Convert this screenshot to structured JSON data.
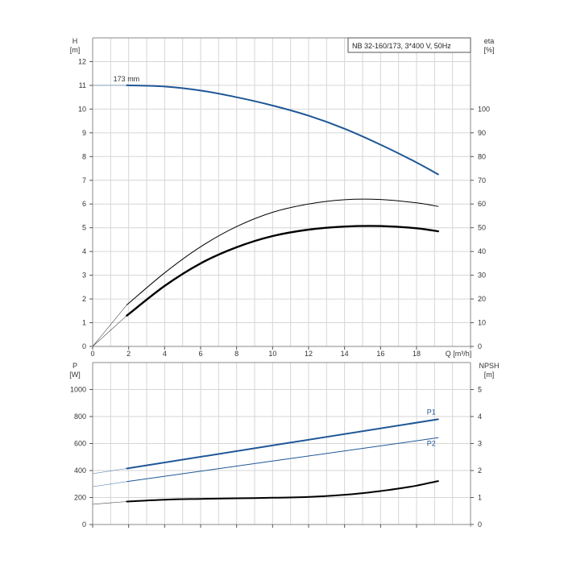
{
  "colors": {
    "blue": "#1f5796",
    "black": "#000000",
    "grid": "#d6d6d6"
  },
  "chart_data": [
    {
      "type": "line",
      "title": "NB 32-160/173, 3*400 V, 50Hz",
      "left_axis": {
        "label_top": "H",
        "label_unit": "[m]",
        "range": [
          0,
          13
        ],
        "ticks": [
          0,
          1,
          2,
          3,
          4,
          5,
          6,
          7,
          8,
          9,
          10,
          11,
          12
        ]
      },
      "right_axis": {
        "label_top": "eta",
        "label_unit": "[%]",
        "range": [
          0,
          130
        ],
        "ticks": [
          0,
          10,
          20,
          30,
          40,
          50,
          60,
          70,
          80,
          90,
          100
        ]
      },
      "x_axis": {
        "label": "Q [m³/h]",
        "range": [
          0,
          21
        ],
        "ticks": [
          0,
          2,
          4,
          6,
          8,
          10,
          12,
          14,
          16,
          18
        ]
      },
      "grid": true,
      "annotations": [
        {
          "text": "173 mm"
        }
      ],
      "series": [
        {
          "axis": "left",
          "color": "blue",
          "width": 2,
          "x": [
            1.9,
            4,
            6,
            8,
            10,
            12,
            14,
            16,
            18,
            19.2
          ],
          "y": [
            11.0,
            10.95,
            10.78,
            10.5,
            10.15,
            9.72,
            9.17,
            8.5,
            7.75,
            7.25
          ],
          "extension": {
            "x": [
              0,
              1.9
            ],
            "y": [
              11.0,
              11.0
            ]
          }
        },
        {
          "axis": "right",
          "color": "black",
          "width": 1,
          "x": [
            1.9,
            4,
            6,
            8,
            10,
            12,
            14,
            16,
            18,
            19.2
          ],
          "y": [
            17.5,
            31.0,
            42.0,
            50.5,
            56.5,
            60.0,
            61.8,
            61.9,
            60.5,
            59.0
          ],
          "extension": {
            "x": [
              0,
              1.9
            ],
            "y": [
              0,
              17.5
            ]
          }
        },
        {
          "axis": "right",
          "color": "black",
          "width": 2.4,
          "x": [
            1.9,
            4,
            6,
            8,
            10,
            12,
            14,
            16,
            18,
            19.2
          ],
          "y": [
            13.0,
            25.5,
            35.0,
            41.8,
            46.5,
            49.2,
            50.5,
            50.7,
            49.8,
            48.5
          ],
          "extension": {
            "x": [
              0,
              1.9
            ],
            "y": [
              0,
              13.0
            ]
          }
        }
      ]
    },
    {
      "type": "line",
      "left_axis": {
        "label_top": "P",
        "label_unit": "[W]",
        "range": [
          0,
          1200
        ],
        "ticks": [
          0,
          200,
          400,
          600,
          800,
          1000
        ]
      },
      "right_axis": {
        "label_top": "NPSH",
        "label_unit": "[m]",
        "range": [
          0,
          6
        ],
        "ticks": [
          0,
          1,
          2,
          3,
          4,
          5
        ]
      },
      "x_axis": {
        "range": [
          0,
          21
        ],
        "ticks": [
          0,
          2,
          4,
          6,
          8,
          10,
          12,
          14,
          16,
          18
        ]
      },
      "grid": true,
      "series": [
        {
          "name": "P1",
          "axis": "left",
          "color": "blue",
          "width": 2,
          "x": [
            1.9,
            19.2
          ],
          "y": [
            415,
            780
          ],
          "extension": {
            "x": [
              0,
              1.9
            ],
            "y": [
              377,
              415
            ]
          }
        },
        {
          "name": "P2",
          "axis": "left",
          "color": "blue",
          "width": 1,
          "x": [
            1.9,
            19.2
          ],
          "y": [
            318,
            643
          ],
          "extension": {
            "x": [
              0,
              1.9
            ],
            "y": [
              280,
              318
            ]
          }
        },
        {
          "axis": "right",
          "color": "black",
          "width": 2,
          "x": [
            1.9,
            4,
            6,
            8,
            10,
            12,
            14,
            15,
            16,
            17,
            18,
            19.2
          ],
          "y": [
            0.85,
            0.92,
            0.95,
            0.97,
            0.99,
            1.02,
            1.1,
            1.16,
            1.24,
            1.33,
            1.44,
            1.61
          ],
          "extension": {
            "x": [
              0,
              1.9
            ],
            "y": [
              0.75,
              0.85
            ]
          }
        }
      ]
    }
  ]
}
